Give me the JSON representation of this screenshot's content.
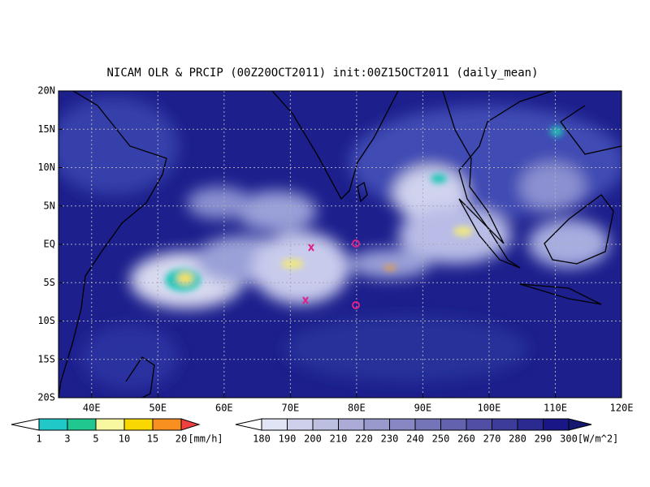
{
  "title": "NICAM OLR & PRCIP (00Z20OCT2011) init:00Z15OCT2011 (daily_mean)",
  "latitude_labels": [
    "20N",
    "15N",
    "10N",
    "5N",
    "EQ",
    "5S",
    "10S",
    "15S",
    "20S"
  ],
  "longitude_labels": [
    "40E",
    "50E",
    "60E",
    "70E",
    "80E",
    "90E",
    "100E",
    "110E",
    "120E"
  ],
  "precip_legend": {
    "labels": [
      "1",
      "3",
      "5",
      "10",
      "15",
      "20"
    ],
    "unit": "[mm/h]"
  },
  "olr_legend": {
    "labels": [
      "180",
      "190",
      "200",
      "210",
      "220",
      "230",
      "240",
      "250",
      "260",
      "270",
      "280",
      "290",
      "300"
    ],
    "unit": "[W/m^2]"
  }
}
